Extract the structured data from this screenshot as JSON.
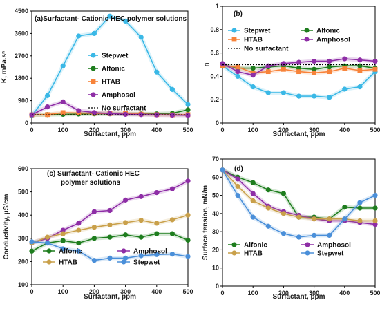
{
  "chart_data": [
    {
      "id": "a",
      "type": "line",
      "title": "(a)Surfactant- Cationic HEC polymer solutions",
      "xlabel": "Surfactant, ppm",
      "ylabel": "K, mPa.sⁿ",
      "xlim": [
        0,
        500
      ],
      "ylim": [
        0,
        4500
      ],
      "xticks": [
        0,
        100,
        200,
        300,
        400,
        500
      ],
      "yticks": [
        0,
        900,
        1800,
        2700,
        3600,
        4500
      ],
      "legend": "right",
      "series": [
        {
          "name": "Stepwet",
          "color": "#3ab8e6",
          "marker": "circle",
          "x": [
            0,
            50,
            100,
            150,
            200,
            250,
            300,
            350,
            400,
            450,
            500
          ],
          "y": [
            300,
            1100,
            2300,
            3500,
            3600,
            4300,
            4100,
            3450,
            2050,
            1350,
            750
          ]
        },
        {
          "name": "Alfonic",
          "color": "#1e7d1e",
          "marker": "circle",
          "x": [
            0,
            50,
            100,
            150,
            200,
            250,
            300,
            350,
            400,
            450,
            500
          ],
          "y": [
            330,
            340,
            350,
            360,
            370,
            370,
            370,
            370,
            370,
            390,
            530
          ]
        },
        {
          "name": "HTAB",
          "color": "#f7833a",
          "marker": "square",
          "x": [
            0,
            50,
            100,
            150,
            200,
            250,
            300,
            350,
            400,
            450,
            500
          ],
          "y": [
            330,
            340,
            420,
            400,
            390,
            380,
            380,
            360,
            340,
            330,
            340
          ]
        },
        {
          "name": "Amphosol",
          "color": "#8e2ea6",
          "marker": "circle",
          "x": [
            0,
            50,
            100,
            150,
            200,
            250,
            300,
            350,
            400,
            450,
            500
          ],
          "y": [
            330,
            650,
            850,
            500,
            420,
            380,
            350,
            340,
            330,
            320,
            310
          ]
        },
        {
          "name": "No surfactant",
          "color": "#000000",
          "marker": "none",
          "dashed": true,
          "x": [
            0,
            500
          ],
          "y": [
            330,
            330
          ]
        }
      ]
    },
    {
      "id": "b",
      "type": "line",
      "title": "(b)",
      "xlabel": "Surfactant, ppm",
      "ylabel": "n",
      "xlim": [
        0,
        500
      ],
      "ylim": [
        0,
        1
      ],
      "xticks": [
        0,
        100,
        200,
        300,
        400,
        500
      ],
      "yticks": [
        0,
        0.2,
        0.4,
        0.6,
        0.8,
        1
      ],
      "series": [
        {
          "name": "Stepwet",
          "color": "#3ab8e6",
          "marker": "circle",
          "x": [
            0,
            50,
            100,
            150,
            200,
            250,
            300,
            350,
            400,
            450,
            500
          ],
          "y": [
            0.49,
            0.4,
            0.31,
            0.26,
            0.26,
            0.23,
            0.23,
            0.22,
            0.29,
            0.31,
            0.44
          ]
        },
        {
          "name": "Alfonic",
          "color": "#1e7d1e",
          "marker": "circle",
          "x": [
            0,
            50,
            100,
            150,
            200,
            250,
            300,
            350,
            400,
            450,
            500
          ],
          "y": [
            0.5,
            0.47,
            0.47,
            0.48,
            0.49,
            0.47,
            0.46,
            0.48,
            0.49,
            0.49,
            0.47
          ]
        },
        {
          "name": "HTAB",
          "color": "#f7833a",
          "marker": "square",
          "x": [
            0,
            50,
            100,
            150,
            200,
            250,
            300,
            350,
            400,
            450,
            500
          ],
          "y": [
            0.49,
            0.48,
            0.43,
            0.44,
            0.46,
            0.44,
            0.43,
            0.44,
            0.47,
            0.45,
            0.46
          ]
        },
        {
          "name": "Amphosol",
          "color": "#8e2ea6",
          "marker": "circle",
          "x": [
            0,
            50,
            100,
            150,
            200,
            250,
            300,
            350,
            400,
            450,
            500
          ],
          "y": [
            0.51,
            0.44,
            0.41,
            0.49,
            0.51,
            0.52,
            0.53,
            0.53,
            0.55,
            0.54,
            0.53
          ]
        },
        {
          "name": "No surfactant",
          "color": "#000000",
          "marker": "none",
          "dashed": true,
          "x": [
            0,
            500
          ],
          "y": [
            0.5,
            0.5
          ]
        }
      ]
    },
    {
      "id": "c",
      "type": "line",
      "title": "(c) Surfactant- Cationic HEC polymer solutions",
      "xlabel": "Surfactant, ppm",
      "ylabel": "Conductivity, µS/cm",
      "xlim": [
        0,
        500
      ],
      "ylim": [
        100,
        600
      ],
      "xticks": [
        0,
        100,
        200,
        300,
        400,
        500
      ],
      "yticks": [
        100,
        200,
        300,
        400,
        500,
        600
      ],
      "series": [
        {
          "name": "Alfonic",
          "color": "#1e7d1e",
          "marker": "circle",
          "x": [
            0,
            50,
            100,
            150,
            200,
            250,
            300,
            350,
            400,
            450,
            500
          ],
          "y": [
            245,
            280,
            290,
            280,
            300,
            305,
            315,
            305,
            320,
            320,
            292
          ]
        },
        {
          "name": "Amphosol",
          "color": "#8e2ea6",
          "marker": "circle",
          "x": [
            0,
            50,
            100,
            150,
            200,
            250,
            300,
            350,
            400,
            450,
            500
          ],
          "y": [
            280,
            300,
            335,
            365,
            415,
            420,
            465,
            480,
            497,
            513,
            547
          ]
        },
        {
          "name": "HTAB",
          "color": "#c9a04a",
          "marker": "circle",
          "x": [
            0,
            50,
            100,
            150,
            200,
            250,
            300,
            350,
            400,
            450,
            500
          ],
          "y": [
            280,
            305,
            320,
            335,
            348,
            358,
            368,
            378,
            365,
            380,
            400
          ]
        },
        {
          "name": "Stepwet",
          "color": "#4a8fd9",
          "marker": "circle",
          "x": [
            0,
            50,
            100,
            150,
            200,
            250,
            300,
            350,
            400,
            450,
            500
          ],
          "y": [
            285,
            280,
            255,
            245,
            205,
            215,
            215,
            225,
            230,
            232,
            222
          ]
        }
      ]
    },
    {
      "id": "d",
      "type": "line",
      "title": "(d)",
      "xlabel": "Surfactant, ppm",
      "ylabel": "Surface tension, mN/m",
      "xlim": [
        0,
        500
      ],
      "ylim": [
        0,
        70
      ],
      "xticks": [
        0,
        100,
        200,
        300,
        400,
        500
      ],
      "yticks": [
        0,
        10,
        20,
        30,
        40,
        50,
        60,
        70
      ],
      "series": [
        {
          "name": "Alfonic",
          "color": "#1e7d1e",
          "marker": "circle",
          "x": [
            0,
            50,
            100,
            150,
            200,
            250,
            300,
            350,
            400,
            450,
            500
          ],
          "y": [
            64,
            60,
            57,
            53,
            51,
            38,
            38,
            37,
            43.5,
            43,
            43
          ]
        },
        {
          "name": "Amphosol",
          "color": "#8e2ea6",
          "marker": "circle",
          "x": [
            0,
            50,
            100,
            150,
            200,
            250,
            300,
            350,
            400,
            450,
            500
          ],
          "y": [
            64,
            59,
            51,
            44,
            41,
            39,
            37,
            36,
            36,
            35,
            34
          ]
        },
        {
          "name": "HTAB",
          "color": "#c9a04a",
          "marker": "circle",
          "x": [
            0,
            50,
            100,
            150,
            200,
            250,
            300,
            350,
            400,
            450,
            500
          ],
          "y": [
            64,
            55,
            47,
            43,
            40,
            38,
            37,
            37,
            37,
            36,
            36
          ]
        },
        {
          "name": "Stepwet",
          "color": "#4a8fd9",
          "marker": "circle",
          "x": [
            0,
            50,
            100,
            150,
            200,
            250,
            300,
            350,
            400,
            450,
            500
          ],
          "y": [
            64,
            50,
            38,
            33,
            29,
            27,
            28,
            28,
            37,
            46,
            50
          ]
        }
      ]
    }
  ]
}
